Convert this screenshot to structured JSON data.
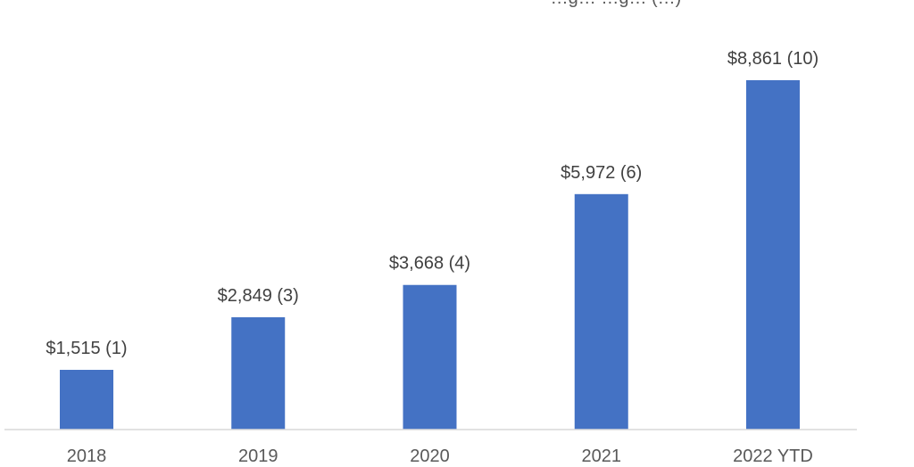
{
  "chart_data": {
    "type": "bar",
    "title": "…g… …g… (…)",
    "categories": [
      "2018",
      "2019",
      "2020",
      "2021",
      "2022 YTD"
    ],
    "values": [
      1515,
      2849,
      3668,
      5972,
      8861
    ],
    "data_labels": [
      "$1,515 (1)",
      "$2,849 (3)",
      "$3,668 (4)",
      "$5,972 (6)",
      "$8,861 (10)"
    ],
    "ylim": [
      0,
      10000
    ],
    "grid": false,
    "legend": "none",
    "colors": {
      "bar": "#4472c4",
      "label_text": "#404040",
      "tick_text": "#595959",
      "axis_line": "#d9d9d9"
    }
  }
}
